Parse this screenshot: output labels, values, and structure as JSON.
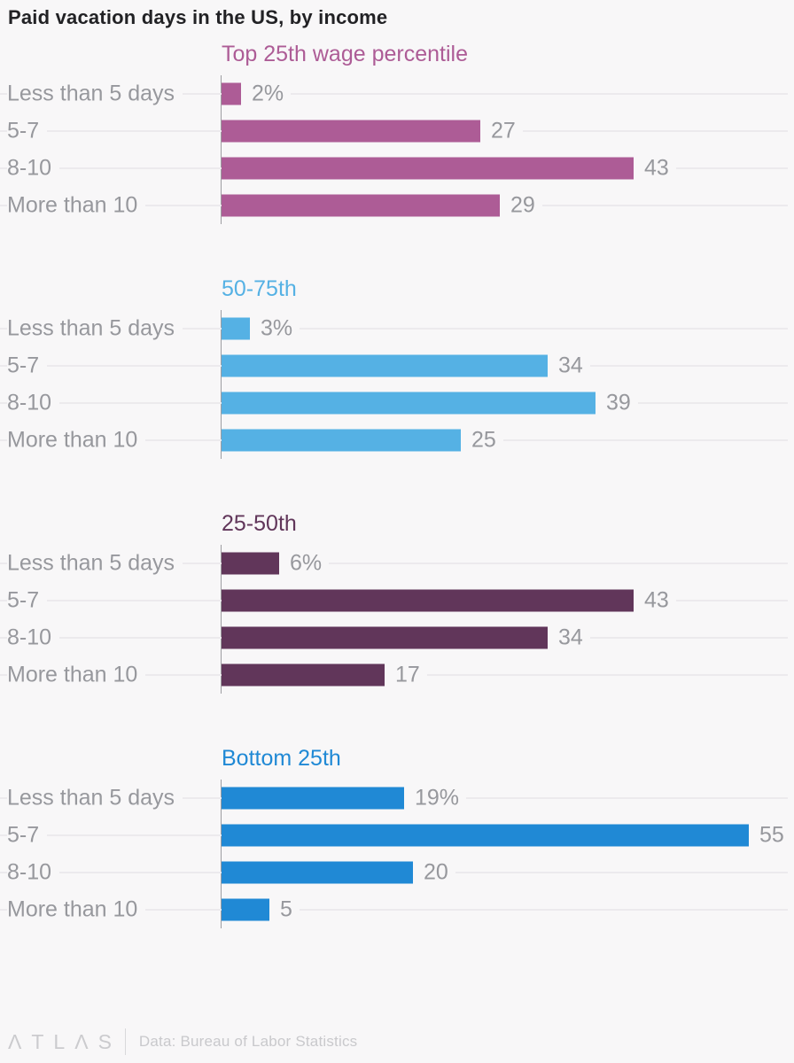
{
  "title": "Paid vacation days in the US, by income",
  "chart_data": {
    "type": "bar",
    "orientation": "horizontal",
    "title": "Paid vacation days in the US, by income",
    "categories": [
      "Less than 5 days",
      "5-7",
      "8-10",
      "More than 10"
    ],
    "xlim": [
      0,
      55
    ],
    "grid": true,
    "unit": "percent",
    "series": [
      {
        "name": "Top 25th wage percentile",
        "color": "#ad5c96",
        "values": [
          2,
          27,
          43,
          29
        ],
        "labels": [
          "2%",
          "27",
          "43",
          "29"
        ]
      },
      {
        "name": "50-75th",
        "color": "#55b1e4",
        "values": [
          3,
          34,
          39,
          25
        ],
        "labels": [
          "3%",
          "34",
          "39",
          "25"
        ]
      },
      {
        "name": "25-50th",
        "color": "#61365a",
        "values": [
          6,
          43,
          34,
          17
        ],
        "labels": [
          "6%",
          "43",
          "34",
          "17"
        ]
      },
      {
        "name": "Bottom 25th",
        "color": "#2089d5",
        "values": [
          19,
          55,
          20,
          5
        ],
        "labels": [
          "19%",
          "55",
          "20",
          "5"
        ]
      }
    ]
  },
  "footer": {
    "logo": "ΛTLΛS",
    "source": "Data: Bureau of Labor Statistics"
  },
  "colors": {
    "background": "#f8f7f8",
    "gridline": "#eceaed",
    "axis": "#9d9da1",
    "label_text": "#97989d",
    "title_text": "#222225",
    "footer_text": "#c9c9cc"
  }
}
